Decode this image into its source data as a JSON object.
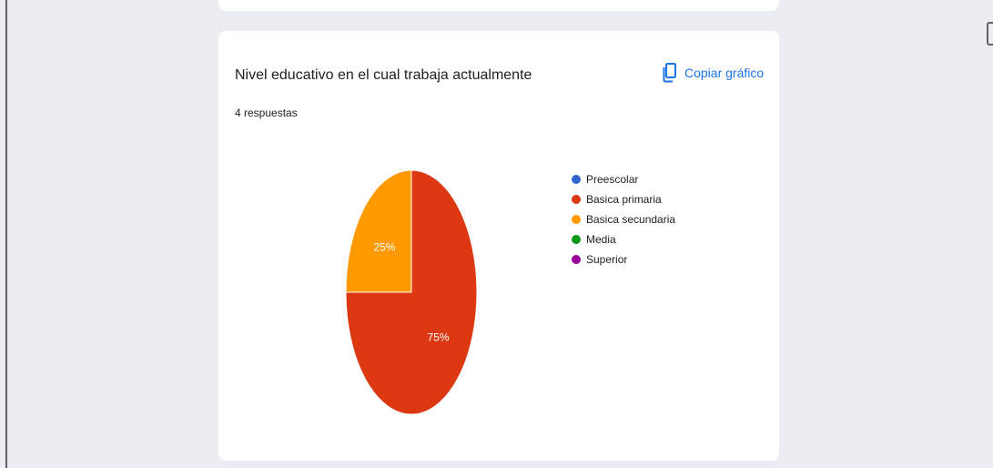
{
  "card": {
    "title": "Nivel educativo en el cual trabaja actualmente",
    "subtitle": "4 respuestas",
    "copy_label": "Copiar gráfico"
  },
  "icons": {
    "copy": "copy-icon"
  },
  "colors": {
    "accent": "#1a73e8"
  },
  "chart_data": {
    "type": "pie",
    "title": "Nivel educativo en el cual trabaja actualmente",
    "legend_position": "right",
    "slices": [
      {
        "label": "Preescolar",
        "value": 0,
        "percent_label": "",
        "color": "#3366cc"
      },
      {
        "label": "Basica primaria",
        "value": 75,
        "percent_label": "75%",
        "color": "#dc3912"
      },
      {
        "label": "Basica secundaria",
        "value": 25,
        "percent_label": "25%",
        "color": "#ff9900"
      },
      {
        "label": "Media",
        "value": 0,
        "percent_label": "",
        "color": "#109618"
      },
      {
        "label": "Superior",
        "value": 0,
        "percent_label": "",
        "color": "#990099"
      }
    ]
  }
}
